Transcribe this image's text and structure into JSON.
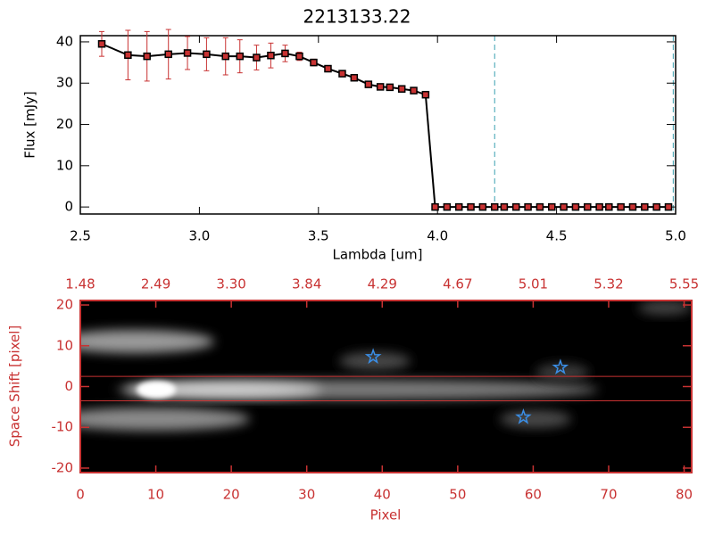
{
  "chart_data": [
    {
      "type": "line",
      "title": "2213133.22",
      "xlabel": "Lambda [um]",
      "ylabel": "Flux [mJy]",
      "x": [
        2.59,
        2.7,
        2.78,
        2.87,
        2.95,
        3.03,
        3.11,
        3.17,
        3.24,
        3.3,
        3.36,
        3.42,
        3.48,
        3.54,
        3.6,
        3.65,
        3.71,
        3.76,
        3.8,
        3.85,
        3.9,
        3.95,
        3.99,
        4.04,
        4.09,
        4.14,
        4.19,
        4.24,
        4.28,
        4.33,
        4.38,
        4.43,
        4.48,
        4.53,
        4.58,
        4.63,
        4.68,
        4.72,
        4.77,
        4.82,
        4.87,
        4.92,
        4.97
      ],
      "values": [
        39.5,
        36.8,
        36.5,
        37,
        37.3,
        37,
        36.5,
        36.5,
        36.2,
        36.7,
        37.2,
        36.5,
        35,
        33.5,
        32.3,
        31.3,
        29.7,
        29.1,
        29,
        28.6,
        28.2,
        27.2,
        0,
        0,
        0,
        0,
        0,
        0,
        0,
        0,
        0,
        0,
        0,
        0,
        0,
        0,
        0,
        0,
        0,
        0,
        0,
        0,
        0
      ],
      "errors": [
        3,
        6,
        6,
        6,
        4,
        4,
        4.5,
        4,
        3,
        3,
        2,
        1,
        0.8,
        0.7,
        0.6,
        0.5,
        0.5,
        0.5,
        0.5,
        0.5,
        0.5,
        0.5,
        0,
        0,
        0,
        0,
        0,
        0,
        0,
        0,
        0,
        0,
        0,
        0,
        0,
        0,
        0,
        0,
        0,
        0,
        0,
        0,
        0
      ],
      "color": "#000000",
      "marker_color": "#c83232",
      "error_color": "#c83232",
      "vlines": [
        4.24,
        4.99
      ],
      "vline_color": "#3aa0b0",
      "xlim": [
        2.5,
        5.0
      ],
      "ylim": [
        -1.7,
        41.5
      ],
      "xticks": [
        {
          "value": 2.5,
          "label": "2.5"
        },
        {
          "value": 3,
          "label": "3.0"
        },
        {
          "value": 3.5,
          "label": "3.5"
        },
        {
          "value": 4,
          "label": "4.0"
        },
        {
          "value": 4.5,
          "label": "4.5"
        },
        {
          "value": 5,
          "label": "5.0"
        }
      ],
      "yticks": [
        0,
        10,
        20,
        30,
        40
      ]
    },
    {
      "type": "image",
      "xlabel": "Pixel",
      "ylabel": "Space Shift [pixel]",
      "xlim": [
        0,
        81
      ],
      "ylim": [
        -21.1,
        21.1
      ],
      "xticks": [
        0,
        10,
        20,
        30,
        40,
        50,
        60,
        70,
        80
      ],
      "yticks": [
        -20,
        -10,
        0,
        10,
        20
      ],
      "x2tick_labels": [
        "1.48",
        "2.49",
        "3.30",
        "3.84",
        "4.29",
        "4.67",
        "5.01",
        "5.32",
        "5.55"
      ],
      "hlines": [
        2.5,
        -3.5
      ],
      "hline_color": "#c83232",
      "stars": {
        "x": [
          38.8,
          63.6,
          58.7
        ],
        "y": [
          7.3,
          4.7,
          -7.5
        ]
      },
      "star_color": "#3a8ee6",
      "color": "#c83232"
    }
  ]
}
